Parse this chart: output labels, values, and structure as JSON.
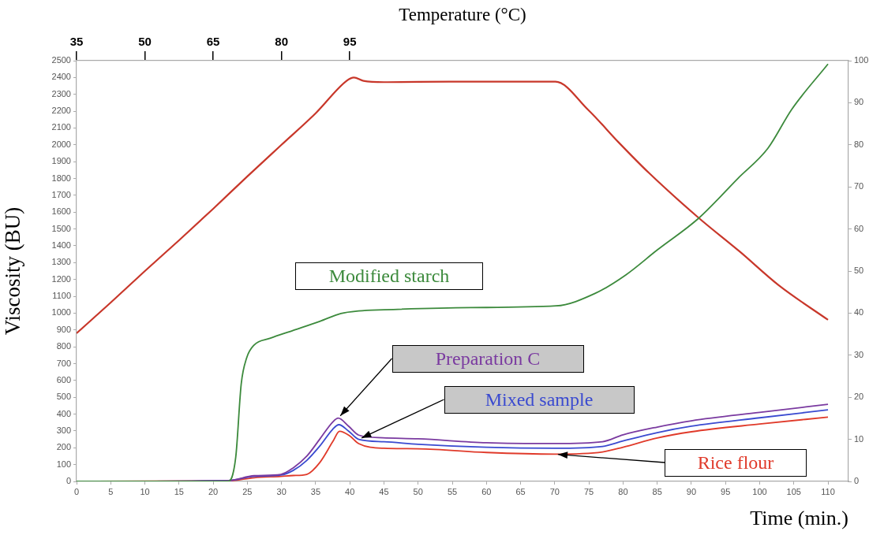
{
  "chart_data": {
    "type": "line",
    "xlabel": "Time (min.)",
    "ylabel": "Viscosity (BU)",
    "x2label": "Temperature (°C)",
    "xlim": [
      0,
      113
    ],
    "xticks": [
      0,
      5,
      10,
      15,
      20,
      25,
      30,
      35,
      40,
      45,
      50,
      55,
      60,
      65,
      70,
      75,
      80,
      85,
      90,
      95,
      100,
      105,
      110
    ],
    "ylim": [
      0,
      2500
    ],
    "yticks": [
      0,
      100,
      200,
      300,
      400,
      500,
      600,
      700,
      800,
      900,
      1000,
      1100,
      1200,
      1300,
      1400,
      1500,
      1600,
      1700,
      1800,
      1900,
      2000,
      2100,
      2200,
      2300,
      2400,
      2500
    ],
    "y2lim": [
      0,
      100
    ],
    "y2ticks": [
      0,
      10,
      20,
      30,
      40,
      50,
      60,
      70,
      80,
      90,
      100
    ],
    "x2lim": [
      35,
      204.5
    ],
    "x2ticks": [
      35,
      50,
      65,
      80,
      95
    ],
    "grid": false,
    "legend": false,
    "marker": "none",
    "line_style": "solid",
    "series": [
      {
        "name": "Modified starch",
        "color": "#3c8a3c",
        "x": [
          0,
          22.2,
          23.3,
          24.1,
          24.9,
          26,
          28.3,
          31.7,
          35.6,
          38.7,
          41.3,
          45,
          57.7,
          70.2,
          75.9,
          80.4,
          85,
          91.1,
          96.8,
          101.2,
          104.7,
          110
        ],
        "values": [
          0,
          0,
          143,
          578,
          734,
          811,
          850,
          897,
          951,
          998,
          1013,
          1020,
          1033,
          1043,
          1117,
          1227,
          1375,
          1565,
          1800,
          1979,
          2211,
          2480
        ]
      },
      {
        "name": "Preparation C",
        "color": "#7a3aa0",
        "x": [
          0,
          22.2,
          26,
          29.9,
          31.7,
          33.7,
          35.6,
          37.5,
          38.3,
          39.8,
          41.3,
          44.8,
          50,
          60,
          70,
          77,
          80,
          85,
          90,
          100,
          110
        ],
        "values": [
          0,
          5,
          34,
          42,
          80,
          150,
          251,
          353,
          376,
          329,
          275,
          259,
          253,
          230,
          225,
          236,
          277,
          323,
          360,
          410,
          458
        ]
      },
      {
        "name": "Mixed sample",
        "color": "#3a4ad0",
        "x": [
          0,
          22.2,
          26,
          29.9,
          31.7,
          33.7,
          35.6,
          37.5,
          38.4,
          39.8,
          41.3,
          45,
          50,
          60,
          70,
          77,
          80,
          85,
          90,
          100,
          110
        ],
        "values": [
          0,
          5,
          30,
          38,
          65,
          125,
          210,
          310,
          337,
          300,
          250,
          236,
          221,
          203,
          197,
          208,
          240,
          290,
          328,
          378,
          425
        ]
      },
      {
        "name": "Rice flour",
        "color": "#e03a2a",
        "x": [
          0,
          22.2,
          26,
          29.9,
          31.7,
          33.7,
          35.6,
          37.5,
          38.5,
          40,
          41.3,
          45,
          50,
          60,
          70,
          77,
          80,
          85,
          90,
          100,
          110
        ],
        "values": [
          0,
          3,
          22,
          30,
          35,
          42,
          112,
          236,
          298,
          270,
          225,
          197,
          194,
          172,
          162,
          175,
          203,
          258,
          295,
          341,
          382
        ]
      },
      {
        "color": "#c8372a",
        "axis": "y2",
        "x": [
          0,
          5,
          10,
          15,
          20,
          25,
          30,
          35,
          39.6,
          40.6,
          42,
          45,
          55,
          65,
          70.1,
          74.9,
          79.4,
          83.8,
          91.1,
          97.1,
          102.8,
          110
        ],
        "values": [
          35.2,
          42.5,
          50,
          57.3,
          64.8,
          72.5,
          80,
          87.5,
          95.3,
          96,
          95.2,
          94.9,
          95,
          95,
          95,
          88.3,
          80.5,
          73.3,
          62.6,
          54.6,
          46.6,
          38.4
        ]
      }
    ]
  }
}
